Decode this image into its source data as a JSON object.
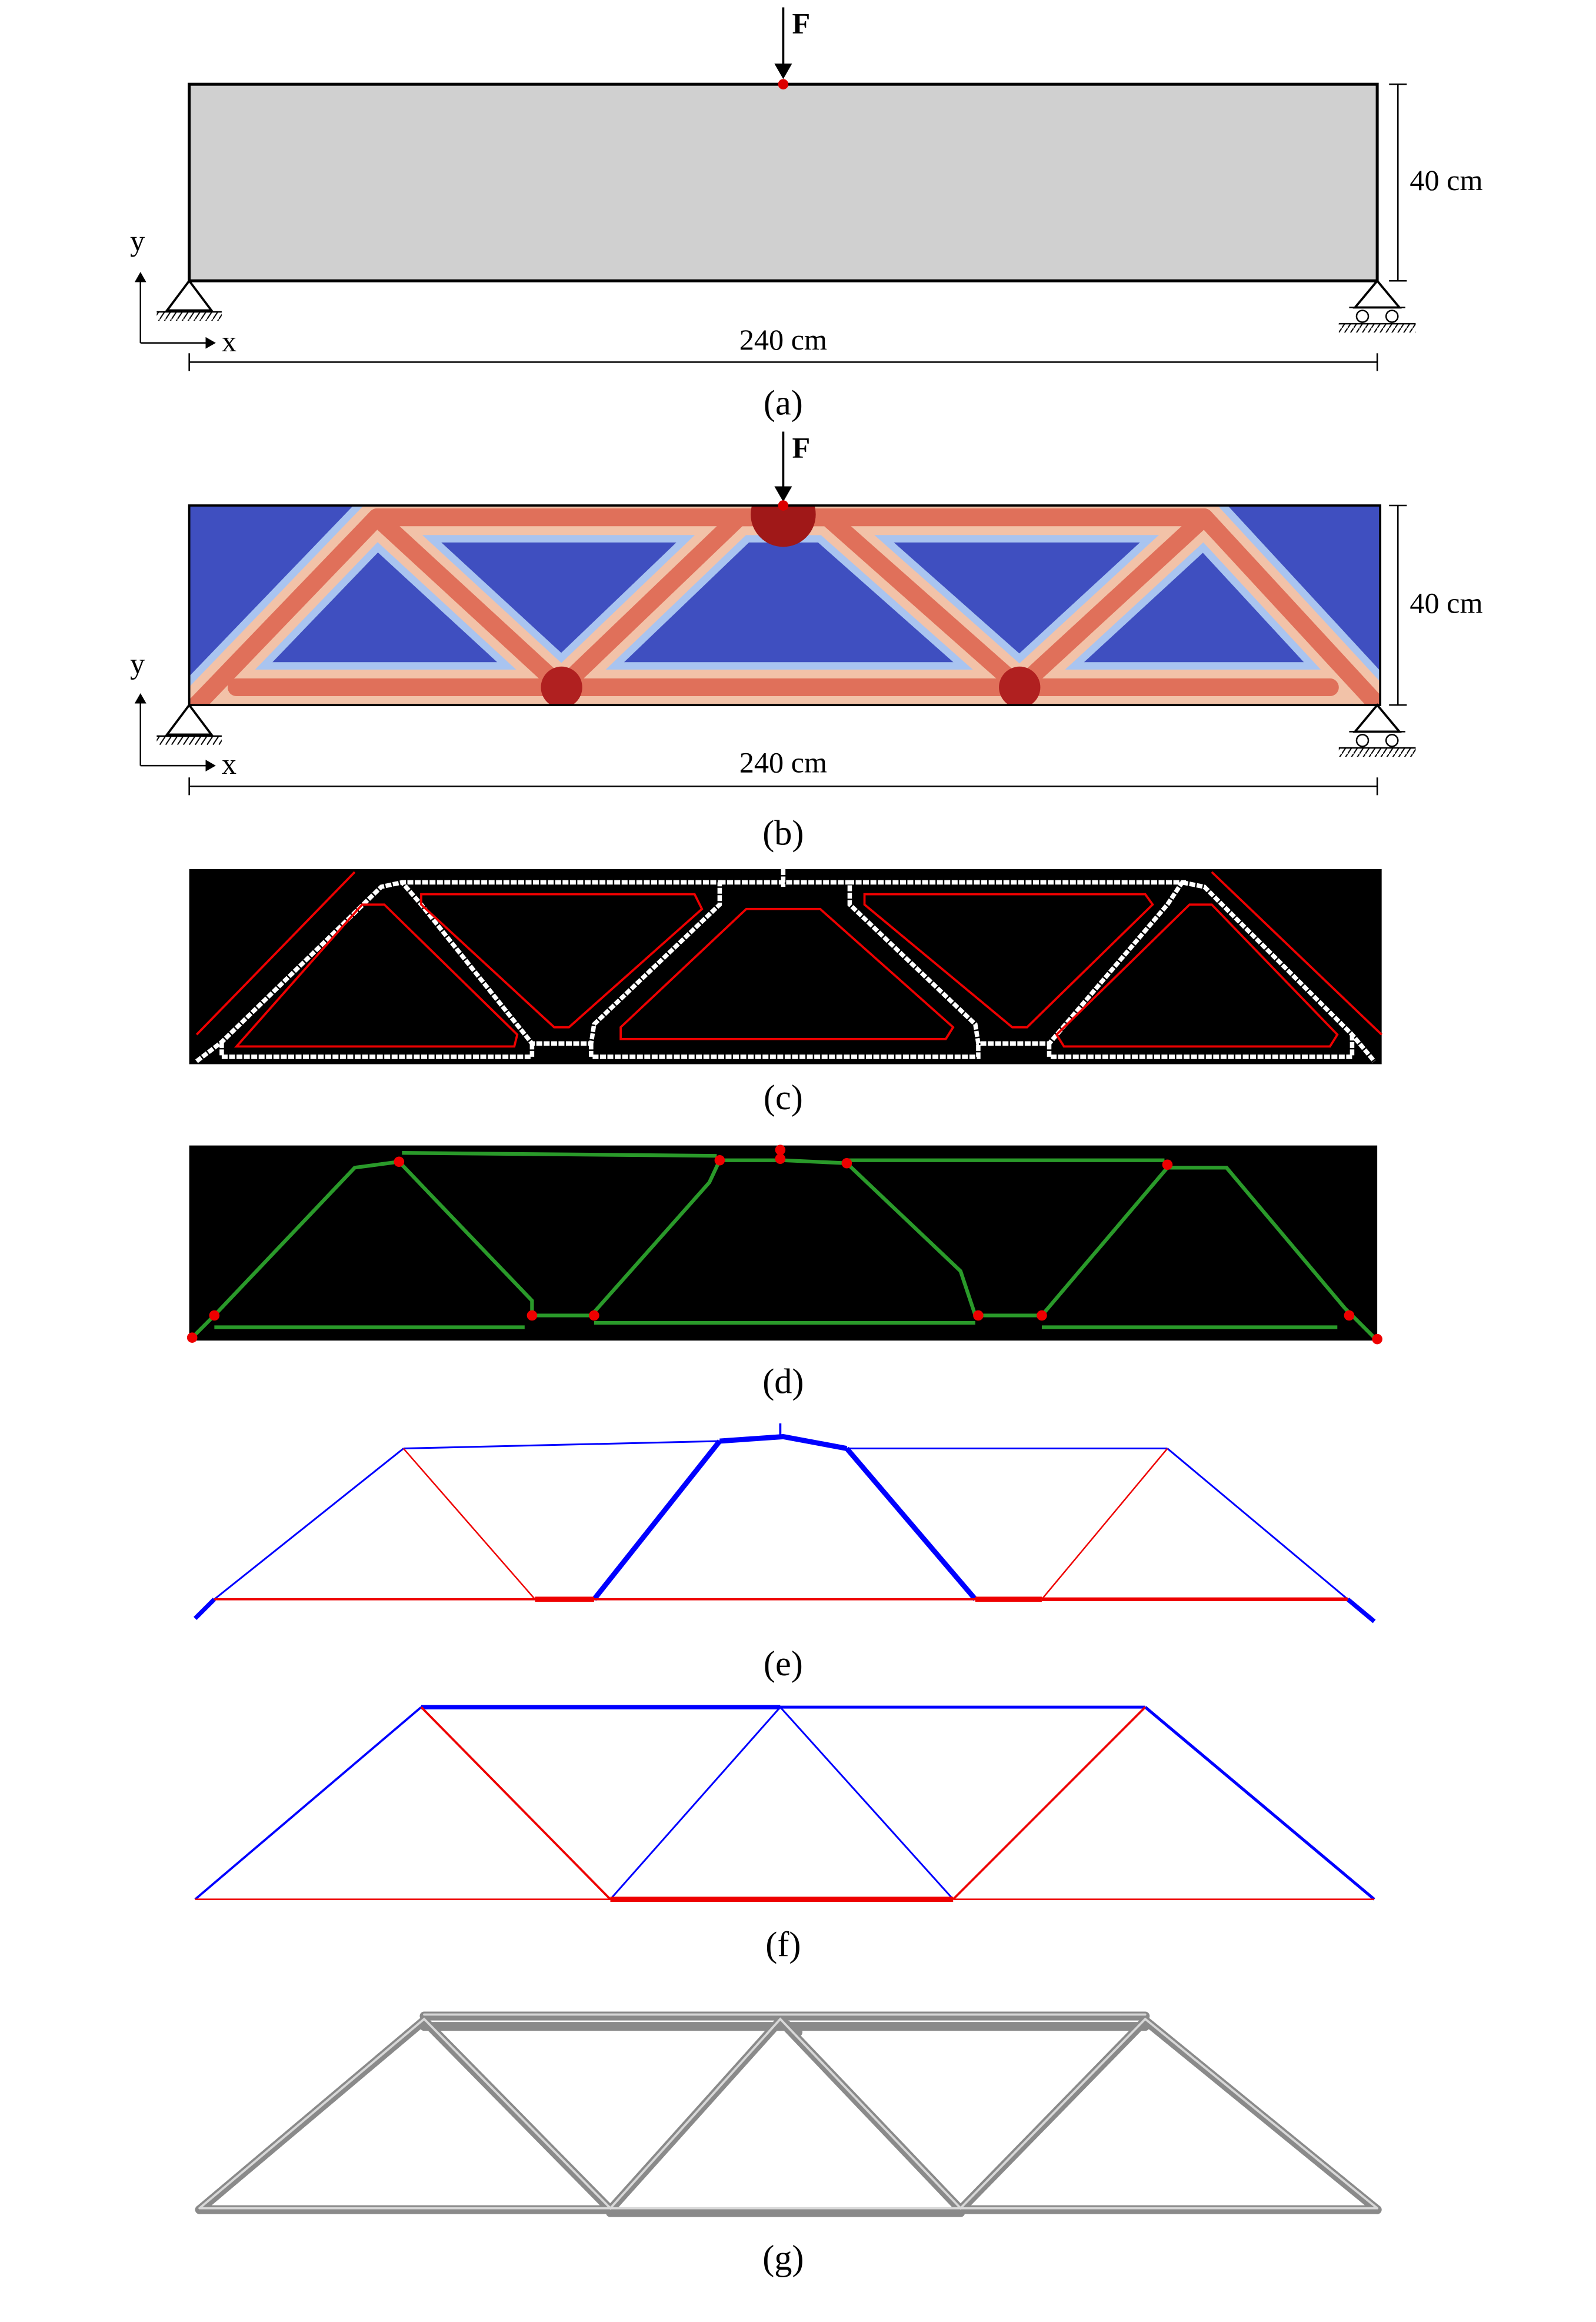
{
  "panels": [
    {
      "label": "(a)",
      "force": "F",
      "height": "40 cm",
      "length": "240 cm",
      "axis_y": "y",
      "axis_x": "x"
    },
    {
      "label": "(b)",
      "force": "F",
      "height": "40 cm",
      "length": "240 cm",
      "axis_y": "y",
      "axis_x": "x"
    },
    {
      "label": "(c)"
    },
    {
      "label": "(d)"
    },
    {
      "label": "(e)"
    },
    {
      "label": "(f)"
    },
    {
      "label": "(g)"
    }
  ]
}
